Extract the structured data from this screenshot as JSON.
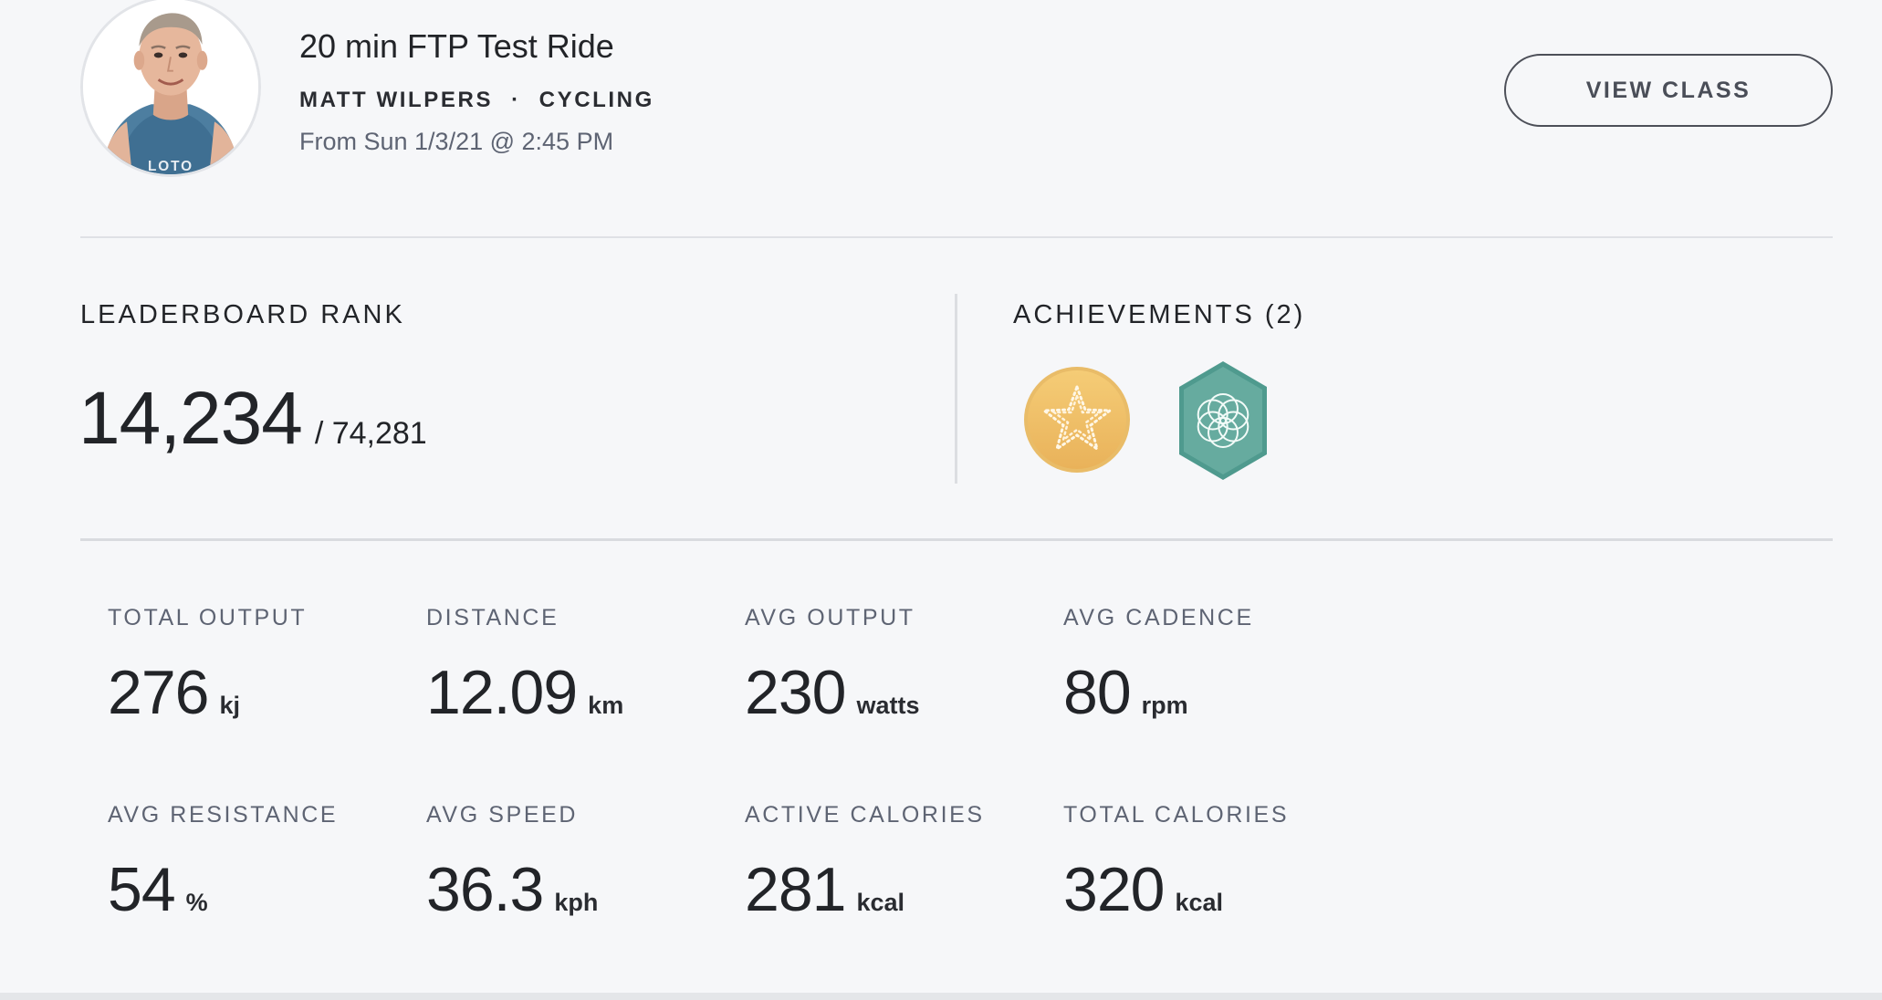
{
  "header": {
    "title": "20 min FTP Test Ride",
    "instructor": "MATT WILPERS",
    "separator": "·",
    "discipline": "CYCLING",
    "date": "From Sun 1/3/21 @ 2:45 PM",
    "view_class_label": "VIEW CLASS",
    "avatar_shirt_text": "LOTO"
  },
  "leaderboard": {
    "label": "LEADERBOARD RANK",
    "rank": "14,234",
    "total": "/ 74,281"
  },
  "achievements": {
    "label": "ACHIEVEMENTS (2)",
    "badges": [
      {
        "icon": "gold-star-badge-icon",
        "color": "#f0c267"
      },
      {
        "icon": "teal-flower-badge-icon",
        "color": "#5fa89c"
      }
    ]
  },
  "stats": [
    {
      "label": "TOTAL OUTPUT",
      "value": "276",
      "unit": "kj"
    },
    {
      "label": "DISTANCE",
      "value": "12.09",
      "unit": "km"
    },
    {
      "label": "AVG OUTPUT",
      "value": "230",
      "unit": "watts"
    },
    {
      "label": "AVG CADENCE",
      "value": "80",
      "unit": "rpm"
    },
    {
      "label": "AVG RESISTANCE",
      "value": "54",
      "unit": "%"
    },
    {
      "label": "AVG SPEED",
      "value": "36.3",
      "unit": "kph"
    },
    {
      "label": "ACTIVE CALORIES",
      "value": "281",
      "unit": "kcal"
    },
    {
      "label": "TOTAL CALORIES",
      "value": "320",
      "unit": "kcal"
    }
  ]
}
